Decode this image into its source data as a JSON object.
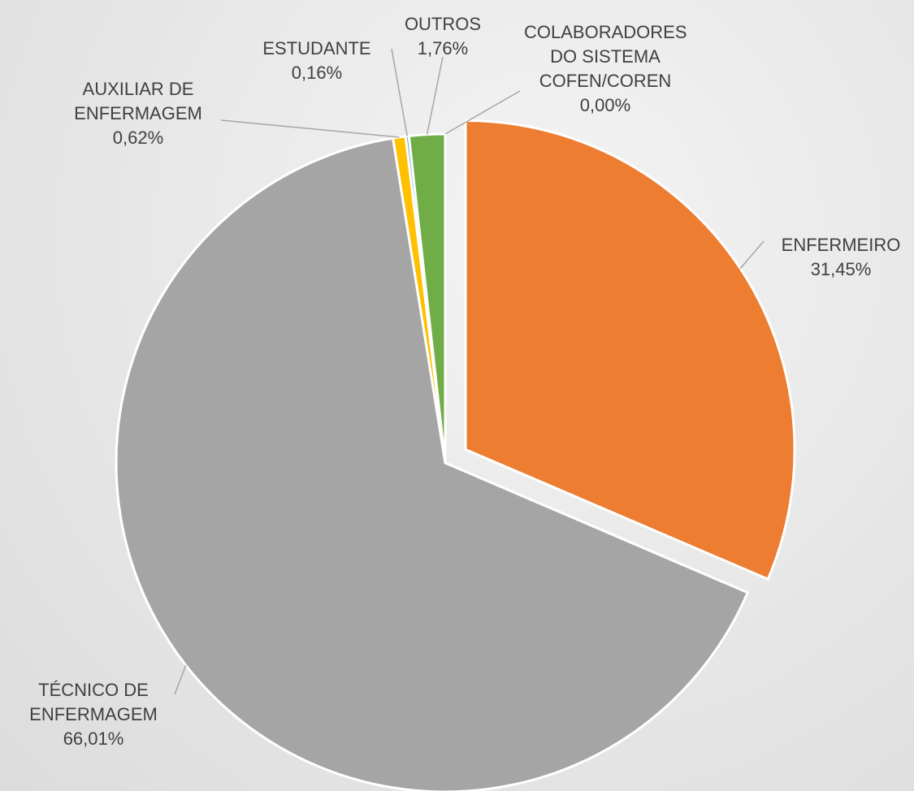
{
  "chart_data": {
    "type": "pie",
    "categories": [
      "ENFERMEIRO",
      "TÉCNICO DE ENFERMAGEM",
      "AUXILIAR DE ENFERMAGEM",
      "ESTUDANTE",
      "OUTROS",
      "COLABORADORES DO SISTEMA COFEN/COREN"
    ],
    "values": [
      31.45,
      66.01,
      0.62,
      0.16,
      1.76,
      0.0
    ],
    "value_labels": [
      "31,45%",
      "66,01%",
      "0,62%",
      "0,16%",
      "1,76%",
      "0,00%"
    ],
    "colors": [
      "#ED7D31",
      "#A5A5A5",
      "#FFC000",
      "#5B9BD5",
      "#70AD47",
      "#4472C4"
    ]
  }
}
